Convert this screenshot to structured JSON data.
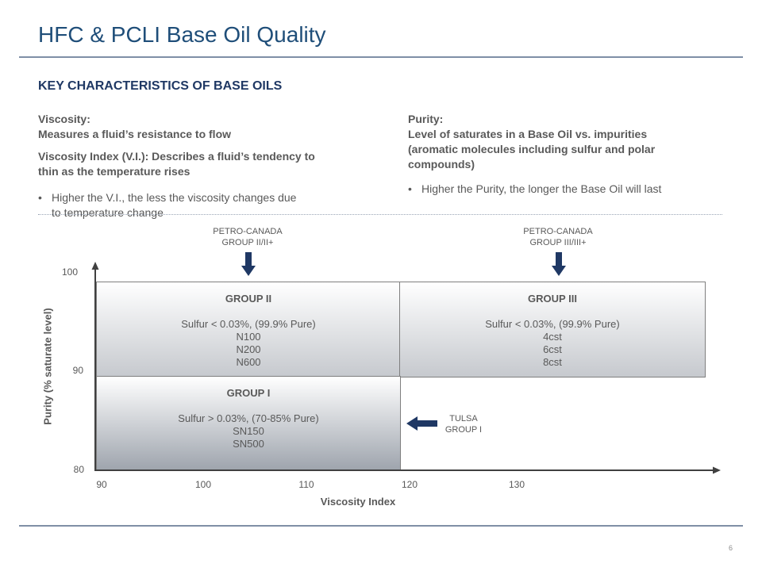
{
  "title": "HFC & PCLI Base Oil Quality",
  "section_heading": "KEY CHARACTERISTICS OF BASE OILS",
  "left": {
    "viscosity_label": "Viscosity:",
    "viscosity_desc": "Measures a fluid’s resistance to flow",
    "vi_line1": "Viscosity Index (V.I.):  Describes a fluid’s tendency to",
    "vi_line2": "thin as the temperature rises",
    "bullet_line1": "Higher the V.I., the less the viscosity changes due",
    "bullet_line2": "to temperature change"
  },
  "right": {
    "purity_label": "Purity:",
    "purity_line1": "Level of saturates in a Base Oil vs. impurities",
    "purity_line2": "(aromatic molecules including sulfur and polar",
    "purity_line3": "compounds)",
    "bullet": "Higher the Purity, the longer the Base Oil will last"
  },
  "bullet_char": "•",
  "annotations": {
    "pc_group2_line1": "PETRO-CANADA",
    "pc_group2_line2": "GROUP II/II+",
    "pc_group3_line1": "PETRO-CANADA",
    "pc_group3_line2": "GROUP III/III+",
    "tulsa_line1": "TULSA",
    "tulsa_line2": "GROUP I"
  },
  "chart": {
    "y_ticks": [
      "100",
      "90",
      "80"
    ],
    "x_ticks": [
      "90",
      "100",
      "110",
      "120",
      "130"
    ],
    "y_axis_title": "Purity (% saturate level)",
    "x_axis_title": "Viscosity Index",
    "y_range": [
      80,
      100
    ],
    "x_range": [
      90,
      120
    ]
  },
  "groups": {
    "group2": {
      "title": "GROUP II",
      "sulfur": "Sulfur < 0.03%, (99.9% Pure)",
      "grades": [
        "N100",
        "N200",
        "N600"
      ],
      "vi_range": [
        90,
        120
      ],
      "purity_range": [
        90,
        100
      ]
    },
    "group3": {
      "title": "GROUP III",
      "sulfur": "Sulfur < 0.03%, (99.9% Pure)",
      "grades": [
        "4cst",
        "6cst",
        "8cst"
      ],
      "purity_range": [
        90,
        100
      ]
    },
    "group1": {
      "title": "GROUP I",
      "sulfur": "Sulfur > 0.03%, (70-85% Pure)",
      "grades": [
        "SN150",
        "SN500"
      ],
      "vi_range": [
        90,
        120
      ],
      "purity_range": [
        80,
        90
      ]
    }
  },
  "colors": {
    "title": "#1f4e79",
    "heading": "#1f3864",
    "arrow": "#1f3864",
    "text": "#595959"
  },
  "page_number": "6"
}
